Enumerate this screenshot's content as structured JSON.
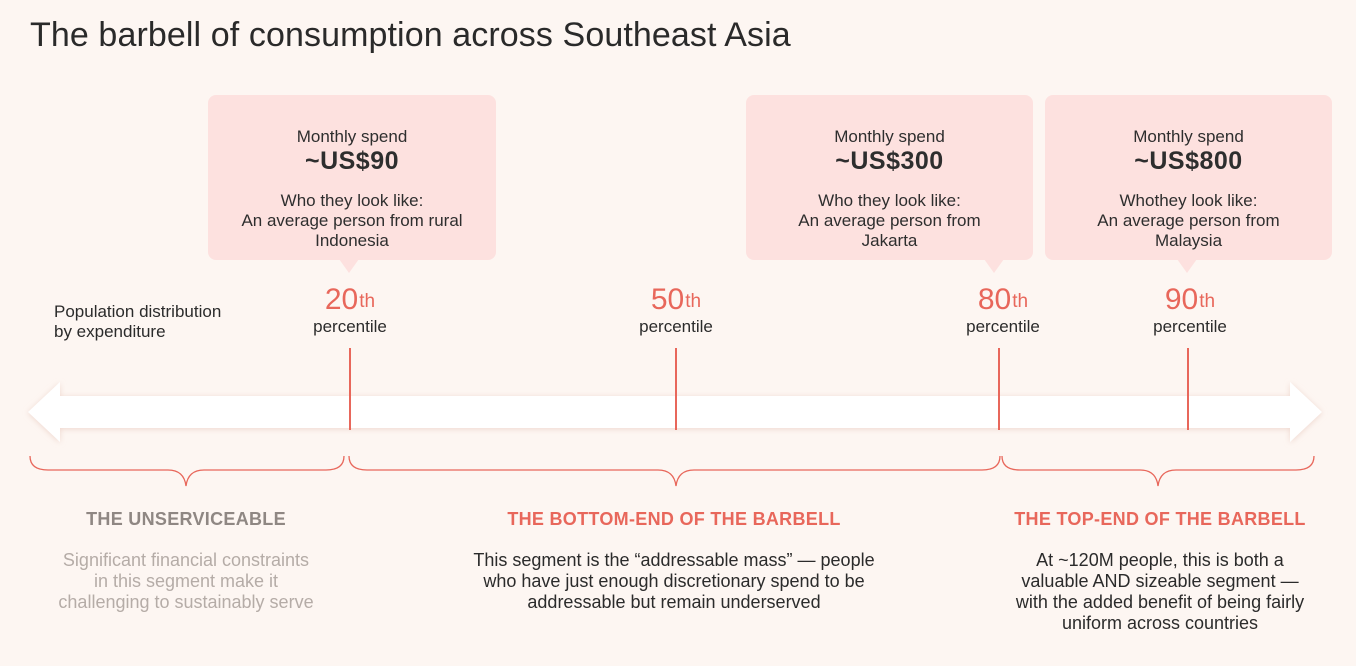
{
  "title": "The barbell of consumption across Southeast Asia",
  "distribution_label": [
    "Population distribution",
    "by expenditure"
  ],
  "percentile_word": "percentile",
  "percentiles": [
    {
      "value": "20",
      "suffix": "th"
    },
    {
      "value": "50",
      "suffix": "th"
    },
    {
      "value": "80",
      "suffix": "th"
    },
    {
      "value": "90",
      "suffix": "th"
    }
  ],
  "bubbles": [
    {
      "label": "Monthly spend",
      "amount": "~US$90",
      "who": "Who they look like:",
      "desc": [
        "An average person from rural",
        "Indonesia"
      ]
    },
    {
      "label": "Monthly spend",
      "amount": "~US$300",
      "who": "Who they look like:",
      "desc": [
        "An average person from",
        "Jakarta"
      ]
    },
    {
      "label": "Monthly spend",
      "amount": "~US$800",
      "who": "Whothey look like:",
      "desc": [
        "An average person from",
        "Malaysia"
      ]
    }
  ],
  "segments": [
    {
      "title": "THE UNSERVICEABLE",
      "desc": [
        "Significant financial constraints",
        "in this segment make it",
        "challenging to sustainably serve"
      ],
      "title_color": "#8f8783",
      "desc_color": "#b5aca7"
    },
    {
      "title": "THE BOTTOM-END OF THE BARBELL",
      "desc": [
        "This segment is the “addressable mass” — people",
        "who have just enough discretionary spend to be",
        "addressable but remain underserved"
      ],
      "title_color": "#e8675b",
      "desc_color": "#2b2b2b"
    },
    {
      "title": "THE TOP-END OF THE BARBELL",
      "desc": [
        "At ~120M people, this is both a",
        "valuable AND sizeable segment —",
        "with the added benefit of being fairly",
        "uniform across countries"
      ],
      "title_color": "#e8675b",
      "desc_color": "#2b2b2b"
    }
  ],
  "colors": {
    "accent": "#e8675b",
    "bubble": "#fde1df",
    "background": "#fdf6f2",
    "arrow": "#ffffff"
  }
}
